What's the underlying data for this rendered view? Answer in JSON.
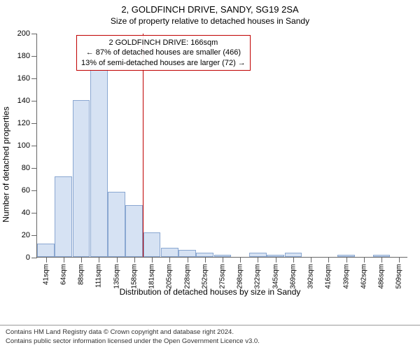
{
  "title": "2, GOLDFINCH DRIVE, SANDY, SG19 2SA",
  "subtitle": "Size of property relative to detached houses in Sandy",
  "chart": {
    "type": "histogram",
    "ylabel": "Number of detached properties",
    "xlabel": "Distribution of detached houses by size in Sandy",
    "ylim": [
      0,
      200
    ],
    "ytick_step": 20,
    "xcategories": [
      "41sqm",
      "64sqm",
      "88sqm",
      "111sqm",
      "135sqm",
      "158sqm",
      "181sqm",
      "205sqm",
      "228sqm",
      "252sqm",
      "275sqm",
      "298sqm",
      "322sqm",
      "345sqm",
      "369sqm",
      "392sqm",
      "416sqm",
      "439sqm",
      "462sqm",
      "486sqm",
      "509sqm"
    ],
    "values": [
      12,
      72,
      140,
      172,
      58,
      46,
      22,
      8,
      6,
      4,
      2,
      0,
      4,
      2,
      4,
      0,
      0,
      2,
      0,
      2,
      0
    ],
    "bar_fill": "#d6e2f3",
    "bar_stroke": "#8aa7d1",
    "background_color": "#ffffff",
    "axis_color": "#666666",
    "tick_label_fontsize": 11,
    "reference_line": {
      "x_index_between": [
        5,
        6
      ],
      "color": "#c00000"
    },
    "annotation": {
      "lines": [
        "2 GOLDFINCH DRIVE: 166sqm",
        "← 87% of detached houses are smaller (466)",
        "13% of semi-detached houses are larger (72) →"
      ],
      "border_color": "#c00000",
      "text_color": "#000000",
      "fontsize": 11
    }
  },
  "footer": {
    "line1": "Contains HM Land Registry data © Crown copyright and database right 2024.",
    "line2": "Contains public sector information licensed under the Open Government Licence v3.0."
  }
}
